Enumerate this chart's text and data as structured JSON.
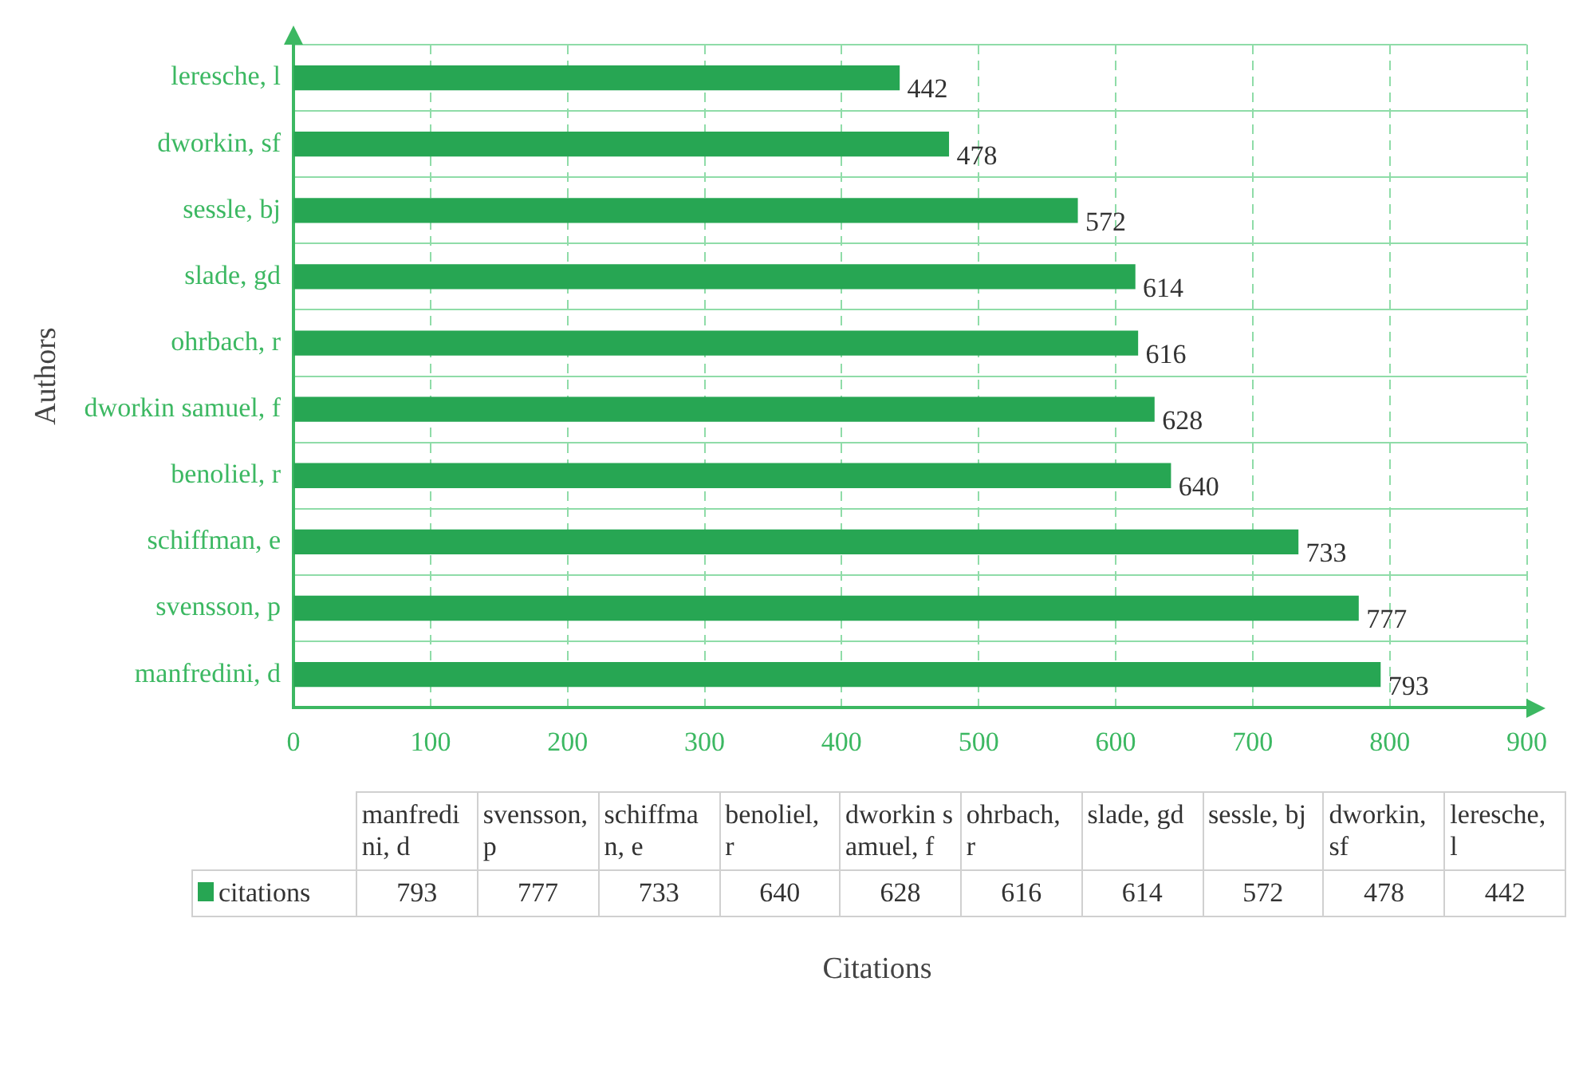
{
  "chart_data": [
    {
      "type": "bar",
      "orientation": "horizontal",
      "ylabel": "Authors",
      "categories": [
        "leresche, l",
        "dworkin, sf",
        "sessle, bj",
        "slade, gd",
        "ohrbach, r",
        "dworkin samuel, f",
        "benoliel, r",
        "schiffman, e",
        "svensson, p",
        "manfredini, d"
      ],
      "series": [
        {
          "name": "citations",
          "color": "#27a653",
          "values": [
            442,
            478,
            572,
            614,
            616,
            628,
            640,
            733,
            777,
            793
          ]
        }
      ],
      "xlim": [
        0,
        900
      ],
      "xticks": [
        0,
        100,
        200,
        300,
        400,
        500,
        600,
        700,
        800,
        900
      ],
      "grid": true,
      "data_labels": true,
      "annotations": [
        "Citations"
      ]
    },
    {
      "type": "other",
      "categories": [
        "manfredini, d",
        "svensson, p",
        "schiffman, e",
        "benoliel, r",
        "dworkin samuel, f",
        "ohrbach, r",
        "slade, gd",
        "sessle, bj",
        "dworkin, sf",
        "leresche, l"
      ],
      "values": [
        793,
        777,
        733,
        640,
        628,
        616,
        614,
        572,
        478,
        442
      ],
      "data_labels": true
    }
  ]
}
